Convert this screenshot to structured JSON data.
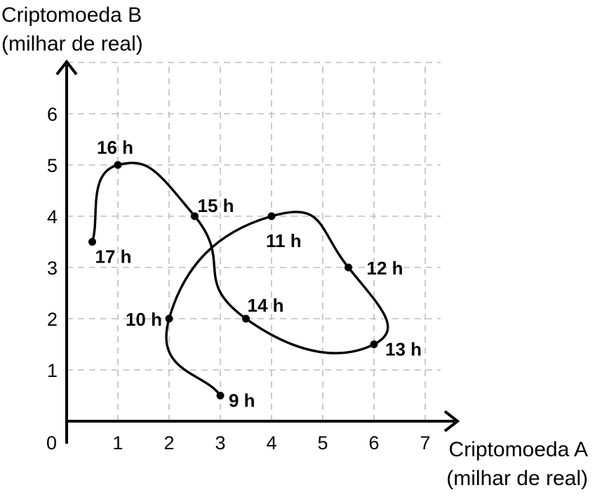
{
  "chart_data": {
    "type": "line",
    "xlabel": [
      "Criptomoeda A",
      "(milhar de real)"
    ],
    "ylabel": [
      "Criptomoeda B",
      "(milhar de real)"
    ],
    "xlim": [
      0,
      7
    ],
    "ylim": [
      0,
      6
    ],
    "x_ticks": [
      "1",
      "2",
      "3",
      "4",
      "5",
      "6",
      "7"
    ],
    "y_ticks": [
      "1",
      "2",
      "3",
      "4",
      "5",
      "6"
    ],
    "origin_label": "0",
    "grid": true,
    "points": [
      {
        "label": "9 h",
        "x": 3.0,
        "y": 0.5
      },
      {
        "label": "10 h",
        "x": 2.0,
        "y": 2.0
      },
      {
        "label": "11 h",
        "x": 4.0,
        "y": 4.0
      },
      {
        "label": "12 h",
        "x": 5.5,
        "y": 3.0
      },
      {
        "label": "13 h",
        "x": 6.0,
        "y": 1.5
      },
      {
        "label": "14 h",
        "x": 3.5,
        "y": 2.0
      },
      {
        "label": "15 h",
        "x": 2.5,
        "y": 4.0
      },
      {
        "label": "16 h",
        "x": 1.0,
        "y": 5.0
      },
      {
        "label": "17 h",
        "x": 0.5,
        "y": 3.5
      }
    ]
  }
}
